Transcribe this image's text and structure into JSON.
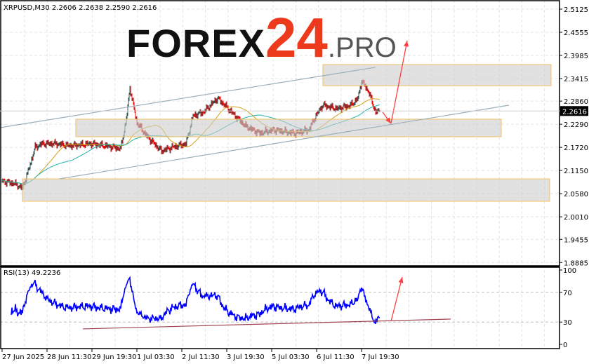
{
  "chart_data": {
    "type": "candlestick",
    "title": "XRPUSD,M30  2.2606 2.2638 2.2590 2.2616",
    "symbol": "XRPUSD,M30",
    "ohlc_last": {
      "open": 2.2606,
      "high": 2.2638,
      "low": 2.259,
      "close": 2.2616
    },
    "current_price_label": "2.2616",
    "bar_minutes": 30,
    "start_time": "2025-06-27 03:30",
    "price_ticks": [
      "2.5125",
      "2.4555",
      "2.3985",
      "2.3415",
      "2.2860",
      "2.2290",
      "2.1720",
      "2.1150",
      "2.0580",
      "2.0010",
      "1.9455",
      "1.8885"
    ],
    "ylim": [
      1.8885,
      2.5125
    ],
    "time_ticks": [
      {
        "label": "27 Jun 2025",
        "time": "2025-06-27 03:30"
      },
      {
        "label": "28 Jun 11:30",
        "time": "2025-06-28 11:30"
      },
      {
        "label": "29 Jun 19:30",
        "time": "2025-06-29 19:30"
      },
      {
        "label": "1 Jul 03:30",
        "time": "2025-07-01 03:30"
      },
      {
        "label": "2 Jul 11:30",
        "time": "2025-07-02 11:30"
      },
      {
        "label": "3 Jul 19:30",
        "time": "2025-07-03 19:30"
      },
      {
        "label": "5 Jul 03:30",
        "time": "2025-07-05 03:30"
      },
      {
        "label": "6 Jul 11:30",
        "time": "2025-07-06 11:30"
      },
      {
        "label": "7 Jul 19:30",
        "time": "2025-07-07 19:30"
      }
    ],
    "close_path": [
      [
        "2025-06-27 03:30",
        2.089
      ],
      [
        "2025-06-27 12:00",
        2.083
      ],
      [
        "2025-06-27 18:00",
        2.072
      ],
      [
        "2025-06-27 22:00",
        2.112
      ],
      [
        "2025-06-28 03:00",
        2.172
      ],
      [
        "2025-06-28 08:00",
        2.181
      ],
      [
        "2025-06-28 18:00",
        2.181
      ],
      [
        "2025-06-29 04:00",
        2.176
      ],
      [
        "2025-06-29 19:00",
        2.181
      ],
      [
        "2025-06-30 05:00",
        2.176
      ],
      [
        "2025-06-30 16:00",
        2.169
      ],
      [
        "2025-06-30 20:00",
        2.241
      ],
      [
        "2025-06-30 22:30",
        2.319
      ],
      [
        "2025-07-01 03:30",
        2.233
      ],
      [
        "2025-07-01 11:00",
        2.198
      ],
      [
        "2025-07-01 21:00",
        2.163
      ],
      [
        "2025-07-02 04:30",
        2.172
      ],
      [
        "2025-07-02 14:30",
        2.181
      ],
      [
        "2025-07-02 19:30",
        2.25
      ],
      [
        "2025-07-03 03:00",
        2.259
      ],
      [
        "2025-07-03 13:00",
        2.293
      ],
      [
        "2025-07-03 18:00",
        2.276
      ],
      [
        "2025-07-04 01:30",
        2.25
      ],
      [
        "2025-07-04 09:00",
        2.224
      ],
      [
        "2025-07-04 19:00",
        2.207
      ],
      [
        "2025-07-05 05:00",
        2.215
      ],
      [
        "2025-07-05 20:00",
        2.207
      ],
      [
        "2025-07-06 06:00",
        2.215
      ],
      [
        "2025-07-06 11:00",
        2.25
      ],
      [
        "2025-07-06 16:00",
        2.276
      ],
      [
        "2025-07-07 02:00",
        2.267
      ],
      [
        "2025-07-07 12:00",
        2.276
      ],
      [
        "2025-07-07 17:00",
        2.293
      ],
      [
        "2025-07-07 19:30",
        2.336
      ],
      [
        "2025-07-08 00:30",
        2.31
      ],
      [
        "2025-07-08 05:30",
        2.259
      ],
      [
        "2025-07-08 08:30",
        2.2616
      ]
    ],
    "moving_averages": [
      {
        "period": 50,
        "color": "#d4a017"
      },
      {
        "period": 100,
        "color": "#20b2aa"
      }
    ],
    "colors": {
      "up": "#2f4f4f",
      "down": "#ff0000",
      "box_border": "#f0c060",
      "channel": "#9aaebc",
      "arrow": "#ff4040",
      "rsi": "#0000ff",
      "rsi_trend": "#a04050"
    },
    "channel_lines": [
      [
        [
          "2025-06-27 02:00",
          2.2206
        ],
        [
          "2025-07-08 05:30",
          2.3692
        ]
      ],
      [
        [
          "2025-06-28 20:30",
          2.0946
        ],
        [
          "2025-07-12 04:30",
          2.2759
        ]
      ]
    ],
    "zones": [
      {
        "from": "2025-07-06 16:00",
        "to": "2025-07-13 10:30",
        "low": 2.324,
        "high": 2.376
      },
      {
        "from": "2025-06-29 08:00",
        "to": "2025-07-11 23:00",
        "low": 2.1982,
        "high": 2.2414
      },
      {
        "from": "2025-06-27 18:00",
        "to": "2025-07-13 09:30",
        "low": 2.0393,
        "high": 2.0945
      }
    ],
    "arrows": [
      [
        [
          "2025-07-08 10:30",
          2.2586
        ],
        [
          "2025-07-08 16:30",
          2.231
        ]
      ],
      [
        [
          "2025-07-08 16:30",
          2.231
        ],
        [
          "2025-07-09 04:00",
          2.4348
        ]
      ]
    ],
    "rsi": {
      "label": "RSI(13) 49.2236",
      "period": 13,
      "ticks": [
        "100",
        "70",
        "30",
        "0"
      ],
      "levels": [
        70,
        30
      ],
      "trend_line": [
        [
          "2025-06-29 13:00",
          20.8
        ],
        [
          "2025-07-10 11:00",
          34
        ]
      ],
      "arrow": [
        [
          "2025-07-08 16:30",
          31
        ],
        [
          "2025-07-09 00:30",
          90.6
        ]
      ]
    }
  },
  "logo": {
    "part1": "FOREX",
    "part2": "24",
    "part3": ".PRO"
  }
}
